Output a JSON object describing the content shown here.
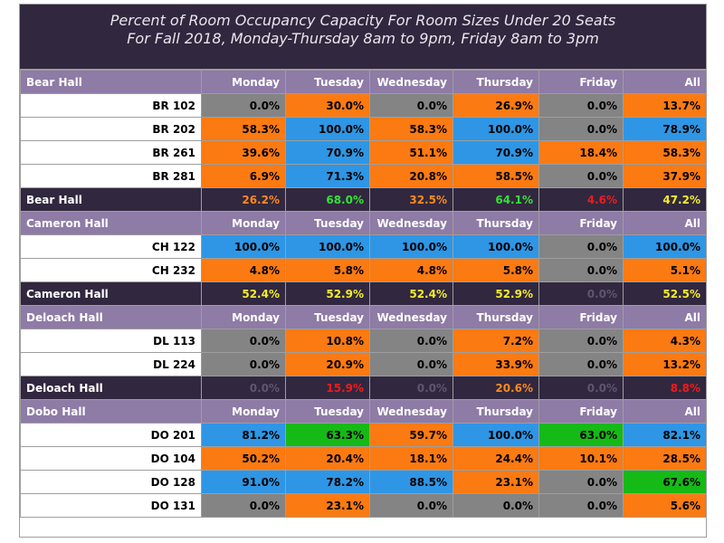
{
  "title": {
    "line1": "Percent of Room Occupancy Capacity For Room Sizes Under 20 Seats",
    "line2": "For Fall 2018, Monday-Thursday 8am to 9pm, Friday 8am to 3pm"
  },
  "colors": {
    "title_bg": "#31273f",
    "header_bg": "#8e7ba6",
    "gray": "#848484",
    "orange": "#fb7a12",
    "blue": "#2e96e5",
    "green": "#16ba16"
  },
  "columns": [
    "Monday",
    "Tuesday",
    "Wednesday",
    "Thursday",
    "Friday",
    "All"
  ],
  "sections": [
    {
      "name": "Bear Hall",
      "rooms": [
        {
          "name": "BR 102",
          "cells": [
            {
              "v": "0.0%",
              "c": "gray"
            },
            {
              "v": "30.0%",
              "c": "orange"
            },
            {
              "v": "0.0%",
              "c": "gray"
            },
            {
              "v": "26.9%",
              "c": "orange"
            },
            {
              "v": "0.0%",
              "c": "gray"
            },
            {
              "v": "13.7%",
              "c": "orange"
            }
          ]
        },
        {
          "name": "BR 202",
          "cells": [
            {
              "v": "58.3%",
              "c": "orange"
            },
            {
              "v": "100.0%",
              "c": "blue"
            },
            {
              "v": "58.3%",
              "c": "orange"
            },
            {
              "v": "100.0%",
              "c": "blue"
            },
            {
              "v": "0.0%",
              "c": "gray"
            },
            {
              "v": "78.9%",
              "c": "blue"
            }
          ]
        },
        {
          "name": "BR 261",
          "cells": [
            {
              "v": "39.6%",
              "c": "orange"
            },
            {
              "v": "70.9%",
              "c": "blue"
            },
            {
              "v": "51.1%",
              "c": "orange"
            },
            {
              "v": "70.9%",
              "c": "blue"
            },
            {
              "v": "18.4%",
              "c": "orange"
            },
            {
              "v": "58.3%",
              "c": "orange"
            }
          ]
        },
        {
          "name": "BR 281",
          "cells": [
            {
              "v": "6.9%",
              "c": "orange"
            },
            {
              "v": "71.3%",
              "c": "blue"
            },
            {
              "v": "20.8%",
              "c": "orange"
            },
            {
              "v": "58.5%",
              "c": "orange"
            },
            {
              "v": "0.0%",
              "c": "gray"
            },
            {
              "v": "37.9%",
              "c": "orange"
            }
          ]
        }
      ],
      "total": [
        {
          "v": "26.2%",
          "c": "orange"
        },
        {
          "v": "68.0%",
          "c": "green"
        },
        {
          "v": "32.5%",
          "c": "orange"
        },
        {
          "v": "64.1%",
          "c": "green"
        },
        {
          "v": "4.6%",
          "c": "red"
        },
        {
          "v": "47.2%",
          "c": "yellow"
        }
      ]
    },
    {
      "name": "Cameron Hall",
      "rooms": [
        {
          "name": "CH 122",
          "cells": [
            {
              "v": "100.0%",
              "c": "blue"
            },
            {
              "v": "100.0%",
              "c": "blue"
            },
            {
              "v": "100.0%",
              "c": "blue"
            },
            {
              "v": "100.0%",
              "c": "blue"
            },
            {
              "v": "0.0%",
              "c": "gray"
            },
            {
              "v": "100.0%",
              "c": "blue"
            }
          ]
        },
        {
          "name": "CH 232",
          "cells": [
            {
              "v": "4.8%",
              "c": "orange"
            },
            {
              "v": "5.8%",
              "c": "orange"
            },
            {
              "v": "4.8%",
              "c": "orange"
            },
            {
              "v": "5.8%",
              "c": "orange"
            },
            {
              "v": "0.0%",
              "c": "gray"
            },
            {
              "v": "5.1%",
              "c": "orange"
            }
          ]
        }
      ],
      "total": [
        {
          "v": "52.4%",
          "c": "yellow"
        },
        {
          "v": "52.9%",
          "c": "yellow"
        },
        {
          "v": "52.4%",
          "c": "yellow"
        },
        {
          "v": "52.9%",
          "c": "yellow"
        },
        {
          "v": "0.0%",
          "c": "gray"
        },
        {
          "v": "52.5%",
          "c": "yellow"
        }
      ]
    },
    {
      "name": "Deloach Hall",
      "rooms": [
        {
          "name": "DL 113",
          "cells": [
            {
              "v": "0.0%",
              "c": "gray"
            },
            {
              "v": "10.8%",
              "c": "orange"
            },
            {
              "v": "0.0%",
              "c": "gray"
            },
            {
              "v": "7.2%",
              "c": "orange"
            },
            {
              "v": "0.0%",
              "c": "gray"
            },
            {
              "v": "4.3%",
              "c": "orange"
            }
          ]
        },
        {
          "name": "DL 224",
          "cells": [
            {
              "v": "0.0%",
              "c": "gray"
            },
            {
              "v": "20.9%",
              "c": "orange"
            },
            {
              "v": "0.0%",
              "c": "gray"
            },
            {
              "v": "33.9%",
              "c": "orange"
            },
            {
              "v": "0.0%",
              "c": "gray"
            },
            {
              "v": "13.2%",
              "c": "orange"
            }
          ]
        }
      ],
      "total": [
        {
          "v": "0.0%",
          "c": "gray"
        },
        {
          "v": "15.9%",
          "c": "red"
        },
        {
          "v": "0.0%",
          "c": "gray"
        },
        {
          "v": "20.6%",
          "c": "orange"
        },
        {
          "v": "0.0%",
          "c": "gray"
        },
        {
          "v": "8.8%",
          "c": "red"
        }
      ]
    },
    {
      "name": "Dobo Hall",
      "rooms": [
        {
          "name": "DO 201",
          "cells": [
            {
              "v": "81.2%",
              "c": "blue"
            },
            {
              "v": "63.3%",
              "c": "green"
            },
            {
              "v": "59.7%",
              "c": "orange"
            },
            {
              "v": "100.0%",
              "c": "blue"
            },
            {
              "v": "63.0%",
              "c": "green"
            },
            {
              "v": "82.1%",
              "c": "blue"
            }
          ]
        },
        {
          "name": "DO 104",
          "cells": [
            {
              "v": "50.2%",
              "c": "orange"
            },
            {
              "v": "20.4%",
              "c": "orange"
            },
            {
              "v": "18.1%",
              "c": "orange"
            },
            {
              "v": "24.4%",
              "c": "orange"
            },
            {
              "v": "10.1%",
              "c": "orange"
            },
            {
              "v": "28.5%",
              "c": "orange"
            }
          ]
        },
        {
          "name": "DO 128",
          "cells": [
            {
              "v": "91.0%",
              "c": "blue"
            },
            {
              "v": "78.2%",
              "c": "blue"
            },
            {
              "v": "88.5%",
              "c": "blue"
            },
            {
              "v": "23.1%",
              "c": "orange"
            },
            {
              "v": "0.0%",
              "c": "gray"
            },
            {
              "v": "67.6%",
              "c": "green"
            }
          ]
        },
        {
          "name": "DO 131",
          "cells": [
            {
              "v": "0.0%",
              "c": "gray"
            },
            {
              "v": "23.1%",
              "c": "orange"
            },
            {
              "v": "0.0%",
              "c": "gray"
            },
            {
              "v": "0.0%",
              "c": "gray"
            },
            {
              "v": "0.0%",
              "c": "gray"
            },
            {
              "v": "5.6%",
              "c": "orange"
            }
          ]
        }
      ]
    }
  ]
}
